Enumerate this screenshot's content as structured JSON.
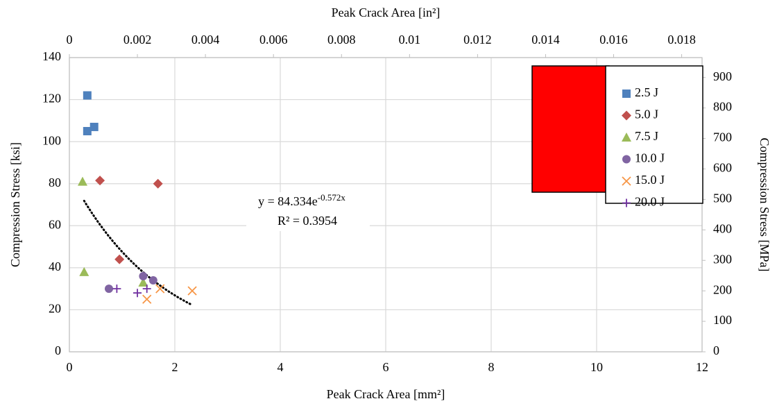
{
  "chart_data": {
    "type": "scatter",
    "xlabel": "Peak Crack Area [mm²]",
    "ylabel": "Compression Stress [ksi]",
    "x2label": "Peak Crack Area [in²]",
    "y2label": "Compression Stress [MPa]",
    "xlim": [
      0,
      12
    ],
    "xticks": [
      0,
      2,
      4,
      6,
      8,
      10,
      12
    ],
    "ylim": [
      0,
      140
    ],
    "yticks": [
      0,
      20,
      40,
      60,
      80,
      100,
      120,
      140
    ],
    "x2lim": [
      0,
      0.0186
    ],
    "x2ticks": [
      0,
      0.002,
      0.004,
      0.006,
      0.008,
      0.01,
      0.012,
      0.014,
      0.016,
      0.018
    ],
    "y2lim": [
      0,
      965.3
    ],
    "y2ticks": [
      0,
      100,
      200,
      300,
      400,
      500,
      600,
      700,
      800,
      900
    ],
    "grid": true,
    "legend": "upper right",
    "series": [
      {
        "name": "2.5 J",
        "color": "#4f81bd",
        "marker": "square",
        "x": [
          0.34,
          0.34,
          0.47
        ],
        "values": [
          122,
          105,
          107
        ]
      },
      {
        "name": "5.0 J",
        "color": "#c0504d",
        "marker": "diamond",
        "x": [
          0.58,
          1.68,
          0.95
        ],
        "values": [
          81.5,
          80,
          44
        ]
      },
      {
        "name": "7.5 J",
        "color": "#9bbb59",
        "marker": "triangle",
        "x": [
          0.25,
          0.28,
          1.4
        ],
        "values": [
          81,
          38,
          33
        ]
      },
      {
        "name": "10.0 J",
        "color": "#8064a2",
        "marker": "circle",
        "x": [
          0.75,
          1.4,
          1.59
        ],
        "values": [
          30,
          36,
          34
        ]
      },
      {
        "name": "15.0 J",
        "color": "#f79646",
        "marker": "x",
        "x": [
          1.47,
          1.72,
          2.33
        ],
        "values": [
          25,
          30,
          29
        ]
      },
      {
        "name": "20.0 J",
        "color": "#7030a0",
        "marker": "plus",
        "x": [
          0.9,
          1.29,
          1.47
        ],
        "values": [
          30,
          28,
          30
        ]
      }
    ],
    "trendline": {
      "a": 84.334,
      "b": -0.572,
      "xlim": [
        0.28,
        2.3
      ],
      "equation": "y = 84.334e",
      "equation_exponent": "-0.572x",
      "r_squared": "R² = 0.3954"
    }
  }
}
